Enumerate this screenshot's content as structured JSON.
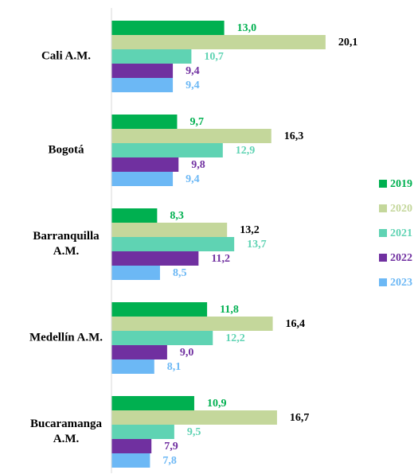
{
  "chart_data": {
    "type": "bar",
    "orientation": "horizontal",
    "categories": [
      "Cali A.M.",
      "Bogotá",
      "Barranquilla A.M.",
      "Medellín A.M.",
      "Bucaramanga A.M."
    ],
    "series": [
      {
        "name": "2019",
        "color": "#00b050",
        "label_color": "#00b050",
        "values": [
          13.0,
          9.7,
          8.3,
          11.8,
          10.9
        ],
        "value_labels": [
          "13,0",
          "9,7",
          "8,3",
          "11,8",
          "10,9"
        ]
      },
      {
        "name": "2020",
        "color": "#c4d79b",
        "label_color": "#000000",
        "values": [
          20.1,
          16.3,
          13.2,
          16.4,
          16.7
        ],
        "value_labels": [
          "20,1",
          "16,3",
          "13,2",
          "16,4",
          "16,7"
        ]
      },
      {
        "name": "2021",
        "color": "#5fd3b3",
        "label_color": "#5fd3b3",
        "values": [
          10.7,
          12.9,
          13.7,
          12.2,
          9.5
        ],
        "value_labels": [
          "10,7",
          "12,9",
          "13,7",
          "12,2",
          "9,5"
        ]
      },
      {
        "name": "2022",
        "color": "#7030a0",
        "label_color": "#7030a0",
        "values": [
          9.4,
          9.8,
          11.2,
          9.0,
          7.9
        ],
        "value_labels": [
          "9,4",
          "9,8",
          "11,2",
          "9,0",
          "7,9"
        ]
      },
      {
        "name": "2023",
        "color": "#6cb8f5",
        "label_color": "#6cb8f5",
        "values": [
          9.4,
          9.4,
          8.5,
          8.1,
          7.8
        ],
        "value_labels": [
          "9,4",
          "9,4",
          "8,5",
          "8,1",
          "7,8"
        ]
      }
    ],
    "xlim": [
      5.1,
      21
    ],
    "legend": "right"
  }
}
